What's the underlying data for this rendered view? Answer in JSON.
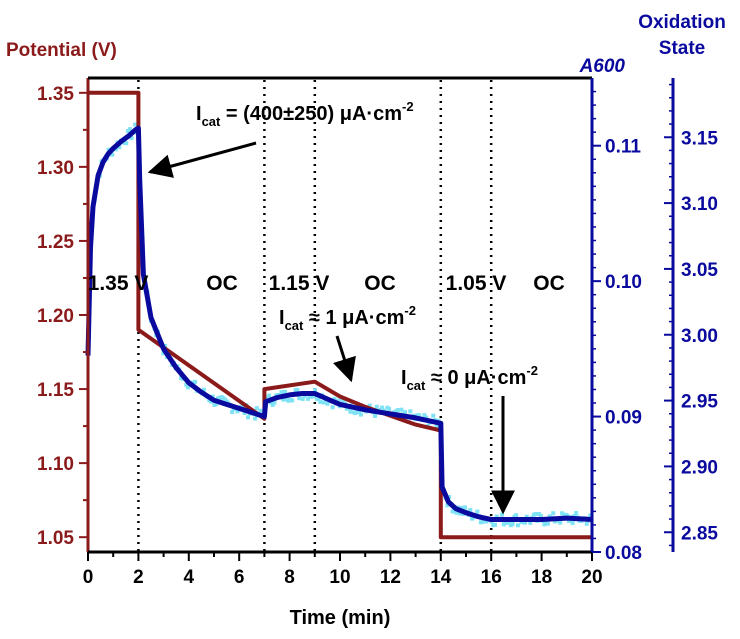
{
  "chart_data": {
    "type": "line",
    "title": "",
    "xlabel": "Time (min)",
    "ylabel_left": "Potential (V)",
    "ylabel_right_inner": "A600",
    "ylabel_right_outer": "Oxidation State",
    "xlim": [
      0,
      20
    ],
    "ylim_left": [
      1.04,
      1.36
    ],
    "ylim_right_inner": [
      0.08,
      0.115
    ],
    "ylim_right_outer": [
      2.835,
      3.195
    ],
    "xticks": [
      "0",
      "2",
      "4",
      "6",
      "8",
      "10",
      "12",
      "14",
      "16",
      "18",
      "20"
    ],
    "yticks_left": [
      "1.05",
      "1.10",
      "1.15",
      "1.20",
      "1.25",
      "1.30",
      "1.35"
    ],
    "yticks_right_inner": [
      "0.08",
      "0.09",
      "0.10",
      "0.11"
    ],
    "yticks_right_outer": [
      "2.85",
      "2.90",
      "2.95",
      "3.00",
      "3.05",
      "3.10",
      "3.15"
    ],
    "grid": false,
    "colors": {
      "potential": "#8b1a1a",
      "a600": "#0a0a9e",
      "scatter": "#7fe3f5",
      "left_axis": "#8b1a1a",
      "right_axis": "#0a0a9e"
    },
    "vlines_x": [
      0,
      2,
      7,
      9,
      14,
      16
    ],
    "series": [
      {
        "name": "Potential (V)",
        "axis": "left",
        "x": [
          0,
          2,
          2,
          7,
          7,
          9,
          10,
          11,
          12,
          13,
          14,
          14,
          20
        ],
        "y": [
          1.35,
          1.35,
          1.19,
          1.13,
          1.15,
          1.155,
          1.145,
          1.138,
          1.132,
          1.126,
          1.122,
          1.05,
          1.05
        ]
      },
      {
        "name": "A600",
        "axis": "right_inner",
        "x": [
          0,
          0.1,
          0.2,
          0.4,
          0.6,
          0.8,
          1.0,
          1.3,
          1.6,
          1.9,
          2.0,
          2.05,
          2.2,
          2.5,
          3.0,
          3.5,
          4.0,
          4.5,
          5.0,
          5.5,
          6.0,
          6.5,
          7.0,
          7.05,
          7.5,
          8.0,
          8.5,
          9.0,
          9.5,
          10.0,
          11.0,
          12.0,
          13.0,
          14.0,
          14.05,
          14.3,
          14.6,
          15.0,
          15.5,
          16.0,
          17.0,
          18.0,
          19.0,
          20.0
        ],
        "y": [
          0.0945,
          0.1025,
          0.1055,
          0.1078,
          0.1088,
          0.1094,
          0.1098,
          0.1103,
          0.1107,
          0.1112,
          0.1113,
          0.1075,
          0.1005,
          0.0973,
          0.095,
          0.0936,
          0.0925,
          0.0918,
          0.0912,
          0.0909,
          0.0906,
          0.0903,
          0.09,
          0.0911,
          0.0914,
          0.0916,
          0.0917,
          0.0917,
          0.0913,
          0.0909,
          0.0905,
          0.0902,
          0.0899,
          0.0895,
          0.0848,
          0.0837,
          0.0832,
          0.0829,
          0.0826,
          0.0824,
          0.0824,
          0.0824,
          0.0825,
          0.0824
        ]
      }
    ],
    "annotations": [
      {
        "id": "v135",
        "text": "1.35 V"
      },
      {
        "id": "oc1",
        "text": "OC"
      },
      {
        "id": "v115",
        "text": "1.15 V"
      },
      {
        "id": "oc2",
        "text": "OC"
      },
      {
        "id": "v105",
        "text": "1.05 V"
      },
      {
        "id": "oc3",
        "text": "OC"
      },
      {
        "id": "icat1",
        "main": "I",
        "sub": "cat",
        "rest": " = (400±250) μA·cm",
        "sup": "-2"
      },
      {
        "id": "icat2",
        "main": "I",
        "sub": "cat",
        "rest": " ≈ 1 μA·cm",
        "sup": "-2"
      },
      {
        "id": "icat3",
        "main": "I",
        "sub": "cat",
        "rest": " ≈ 0 μA·cm",
        "sup": "-2"
      }
    ]
  }
}
